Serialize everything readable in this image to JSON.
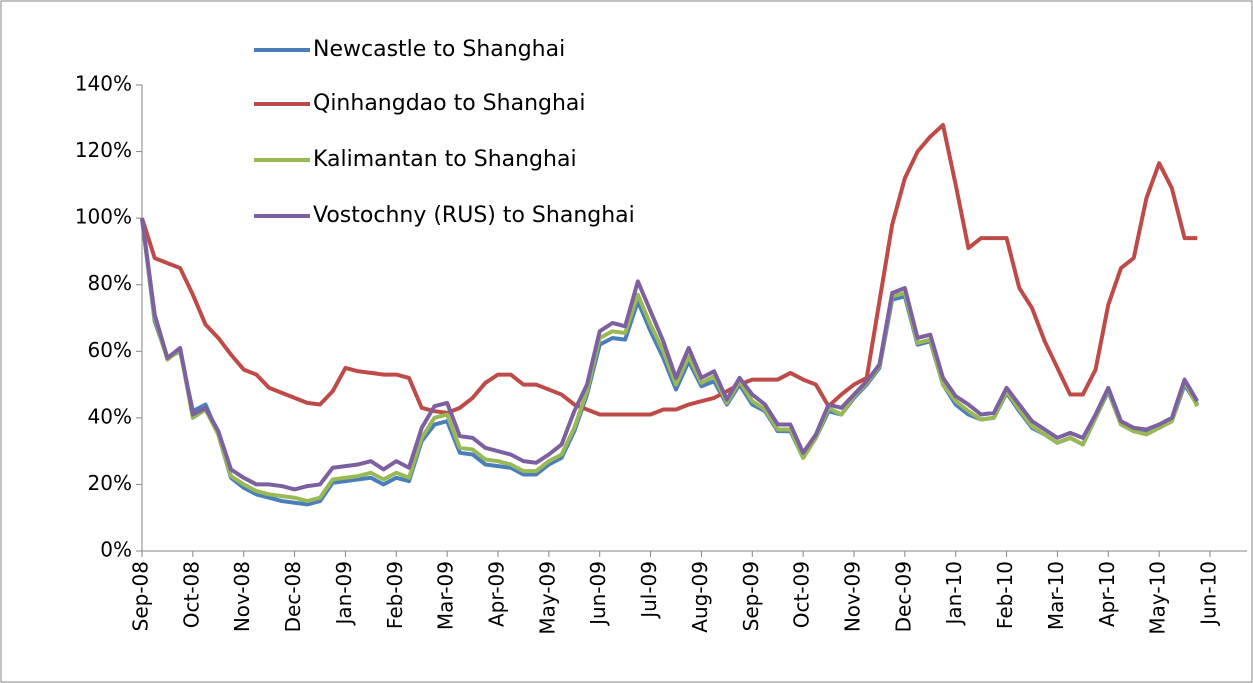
{
  "chart_data": {
    "type": "line",
    "categories": [
      "Sep-08",
      null,
      null,
      null,
      "Oct-08",
      null,
      null,
      null,
      "Nov-08",
      null,
      null,
      null,
      "Dec-08",
      null,
      null,
      null,
      "Jan-09",
      null,
      null,
      null,
      "Feb-09",
      null,
      null,
      null,
      "Mar-09",
      null,
      null,
      null,
      "Apr-09",
      null,
      null,
      null,
      "May-09",
      null,
      null,
      null,
      "Jun-09",
      null,
      null,
      null,
      "Jul-09",
      null,
      null,
      null,
      "Aug-09",
      null,
      null,
      null,
      "Sep-09",
      null,
      null,
      null,
      "Oct-09",
      null,
      null,
      null,
      "Nov-09",
      null,
      null,
      null,
      "Dec-09",
      null,
      null,
      null,
      "Jan-10",
      null,
      null,
      null,
      "Feb-10",
      null,
      null,
      null,
      "Mar-10",
      null,
      null,
      null,
      "Apr-10",
      null,
      null,
      null,
      "May-10",
      null,
      null,
      null,
      "Jun-10"
    ],
    "series": [
      {
        "name": "Newcastle to Shanghai",
        "color": "#4a7ebb",
        "values": [
          100,
          69,
          58,
          60,
          42,
          44,
          35,
          22,
          19,
          17,
          16,
          15,
          14.5,
          14,
          15,
          20.5,
          21,
          21.5,
          22,
          20,
          22,
          21,
          33,
          38,
          39,
          29.5,
          29,
          26,
          25.5,
          25,
          23,
          23,
          26,
          28,
          36,
          47,
          62,
          64,
          63.5,
          75,
          66,
          58,
          48.5,
          57,
          49.5,
          51,
          44,
          50,
          44,
          42,
          36,
          36,
          28,
          34,
          42,
          41,
          46,
          50,
          55,
          75.5,
          76.5,
          62,
          63,
          50,
          44,
          41,
          39.5,
          40,
          47.5,
          42,
          37,
          35,
          32.5,
          34,
          32,
          40,
          48,
          38,
          36,
          36,
          37,
          39,
          50,
          44,
          null
        ]
      },
      {
        "name": "Qinhangdao to Shanghai",
        "color": "#be4b48",
        "values": [
          100,
          88,
          86.5,
          85,
          77,
          68,
          64,
          59,
          54.5,
          53,
          49,
          47.5,
          46,
          44.5,
          44,
          48,
          55,
          54,
          53.5,
          53,
          53,
          52,
          43,
          42,
          41.5,
          43,
          46,
          50.5,
          53,
          53,
          50,
          50,
          48.5,
          47,
          44,
          42.5,
          41,
          41,
          41,
          41,
          41,
          42.5,
          42.5,
          44,
          45,
          46,
          48,
          50,
          51.5,
          51.5,
          51.5,
          53.5,
          51.5,
          50,
          43.5,
          47,
          50,
          52,
          75,
          98,
          112,
          120,
          124.5,
          128,
          110,
          91,
          94,
          94,
          94,
          79,
          73,
          63,
          55,
          47,
          47,
          54.5,
          74,
          85,
          88,
          106,
          116.5,
          109,
          94,
          94,
          null
        ]
      },
      {
        "name": "Kalimantan to Shanghai",
        "color": "#98b954",
        "values": [
          100,
          70,
          57.5,
          60.5,
          40,
          42.5,
          35,
          22.5,
          20,
          18,
          17,
          16.5,
          16,
          15,
          16,
          21.5,
          22,
          22.5,
          23.5,
          21.5,
          23.5,
          22,
          34,
          40,
          41,
          31,
          30.5,
          27.5,
          27,
          26,
          24,
          24,
          27,
          29,
          37,
          48,
          64,
          66,
          65.5,
          77,
          68,
          60,
          50,
          58.5,
          50.5,
          52.5,
          44.5,
          51,
          45,
          42.5,
          36.5,
          36.5,
          28,
          34,
          43,
          41,
          46.5,
          50.5,
          55.5,
          76.5,
          77.5,
          62.5,
          63.5,
          50,
          45,
          42,
          39.5,
          40,
          48,
          42.5,
          37.5,
          35,
          32.5,
          34,
          32,
          40,
          48.5,
          38,
          36,
          35,
          37,
          39,
          51,
          43.5,
          null
        ]
      },
      {
        "name": "Vostochny (RUS) to Shanghai",
        "color": "#7d60a0",
        "values": [
          100,
          71,
          58,
          61,
          41,
          43,
          36,
          24.5,
          22,
          20,
          20,
          19.5,
          18.5,
          19.5,
          20,
          25,
          25.5,
          26,
          27,
          24.5,
          27,
          25,
          37,
          43.5,
          44.5,
          34.5,
          34,
          31,
          30,
          29,
          27,
          26.5,
          29,
          32,
          42,
          50,
          66,
          68.5,
          67.5,
          81,
          72,
          63,
          52,
          61,
          52,
          54,
          45.5,
          52,
          47,
          44,
          38,
          38,
          29.5,
          35,
          44,
          43,
          47,
          51,
          56,
          77.5,
          79,
          64,
          65,
          52,
          46.5,
          44,
          41,
          41.5,
          49,
          44,
          39,
          36.5,
          34,
          35.5,
          34,
          41,
          49,
          39,
          37,
          36.5,
          38,
          40,
          51.5,
          45,
          null
        ]
      }
    ],
    "ylim": [
      0,
      140
    ],
    "yticks": [
      {
        "value": 0,
        "label": "0%"
      },
      {
        "value": 20,
        "label": "20%"
      },
      {
        "value": 40,
        "label": "40%"
      },
      {
        "value": 60,
        "label": "60%"
      },
      {
        "value": 80,
        "label": "80%"
      },
      {
        "value": 100,
        "label": "100%"
      },
      {
        "value": 120,
        "label": "120%"
      },
      {
        "value": 140,
        "label": "140%"
      }
    ],
    "grid": false,
    "legend": "upper-left"
  }
}
